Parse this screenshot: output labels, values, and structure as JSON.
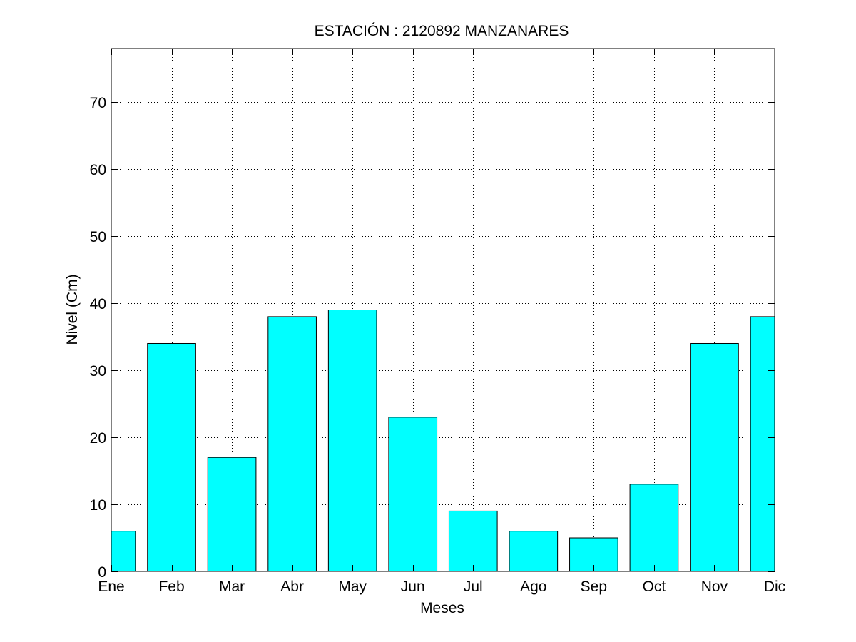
{
  "chart_data": {
    "type": "bar",
    "title": "ESTACIÓN :  2120892  MANZANARES",
    "xlabel": "Meses",
    "ylabel": "Nivel (Cm)",
    "categories": [
      "Ene",
      "Feb",
      "Mar",
      "Abr",
      "May",
      "Jun",
      "Jul",
      "Ago",
      "Sep",
      "Oct",
      "Nov",
      "Dic"
    ],
    "values": [
      6,
      34,
      17,
      38,
      39,
      23,
      9,
      6,
      5,
      13,
      34,
      38
    ],
    "yticks": [
      0,
      10,
      20,
      30,
      40,
      50,
      60,
      70
    ],
    "ylim": [
      0,
      78
    ],
    "grid": true,
    "bar_color": "#00ffff",
    "edge_color": "#000000"
  }
}
